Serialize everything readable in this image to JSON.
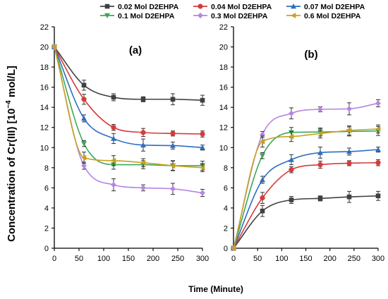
{
  "chart_data": {
    "type": "line",
    "ylabel_main": "Concentration of Cr(III) [10",
    "ylabel_exp": "−4",
    "ylabel_unit": " mol/L]",
    "xlabel": "Time (Minute)",
    "x_ticks": [
      0,
      50,
      100,
      150,
      200,
      250,
      300
    ],
    "y_ticks": [
      0,
      2,
      4,
      6,
      8,
      10,
      12,
      14,
      16,
      18,
      20,
      22
    ],
    "xlim": [
      0,
      300
    ],
    "ylim": [
      0,
      22
    ],
    "legend_position": "top",
    "series_meta": [
      {
        "name": "0.02 Mol D2EHPA",
        "color": "#404040",
        "marker": "square"
      },
      {
        "name": "0.04 Mol D2EHPA",
        "color": "#d93a3a",
        "marker": "circle"
      },
      {
        "name": "0.07 Mol D2EHPA",
        "color": "#2e6ec0",
        "marker": "triangle"
      },
      {
        "name": "0.1 Mol D2EHPA",
        "color": "#3aaa55",
        "marker": "triangle-down"
      },
      {
        "name": "0.3 Mol D2EHPA",
        "color": "#b586e0",
        "marker": "diamond"
      },
      {
        "name": "0.6 Mol  D2EHPA",
        "color": "#c9a020",
        "marker": "triangle-left"
      }
    ],
    "panels": [
      {
        "label": "(a)",
        "x": [
          0,
          60,
          120,
          180,
          240,
          300
        ],
        "series": [
          {
            "values": [
              20,
              16.2,
              15.0,
              14.8,
              14.8,
              14.7
            ],
            "errors": [
              0,
              0.5,
              0.35,
              0.25,
              0.55,
              0.5
            ]
          },
          {
            "values": [
              20,
              14.8,
              12.0,
              11.5,
              11.4,
              11.35
            ],
            "errors": [
              0,
              0.5,
              0.3,
              0.4,
              0.25,
              0.3
            ]
          },
          {
            "values": [
              20,
              12.9,
              10.9,
              10.25,
              10.2,
              10.0
            ],
            "errors": [
              0,
              0.35,
              0.5,
              0.6,
              0.35,
              0.25
            ]
          },
          {
            "values": [
              20,
              10.4,
              8.3,
              8.3,
              8.2,
              8.2
            ],
            "errors": [
              0,
              0.3,
              0.45,
              0.4,
              0.5,
              0.45
            ]
          },
          {
            "values": [
              20,
              8.2,
              6.3,
              6.0,
              5.9,
              5.5
            ],
            "errors": [
              0,
              0.35,
              0.6,
              0.3,
              0.55,
              0.35
            ]
          },
          {
            "values": [
              20,
              9.0,
              8.7,
              8.5,
              8.2,
              8.0
            ],
            "errors": [
              0,
              0.55,
              0.5,
              0.4,
              0.45,
              0.4
            ]
          }
        ]
      },
      {
        "label": "(b)",
        "x": [
          0,
          60,
          120,
          180,
          240,
          300
        ],
        "series": [
          {
            "values": [
              0,
              3.7,
              4.8,
              4.95,
              5.1,
              5.2
            ],
            "errors": [
              0,
              0.55,
              0.35,
              0.25,
              0.55,
              0.45
            ]
          },
          {
            "values": [
              0,
              5.0,
              7.8,
              8.3,
              8.45,
              8.5
            ],
            "errors": [
              0,
              0.55,
              0.3,
              0.35,
              0.25,
              0.3
            ]
          },
          {
            "values": [
              0,
              6.8,
              8.8,
              9.5,
              9.6,
              9.8
            ],
            "errors": [
              0,
              0.35,
              0.5,
              0.55,
              0.35,
              0.25
            ]
          },
          {
            "values": [
              0,
              9.2,
              11.5,
              11.55,
              11.6,
              11.65
            ],
            "errors": [
              0,
              0.3,
              0.5,
              0.4,
              0.45,
              0.45
            ]
          },
          {
            "values": [
              0,
              11.3,
              13.4,
              13.8,
              13.85,
              14.4
            ],
            "errors": [
              0,
              0.3,
              0.55,
              0.25,
              0.6,
              0.35
            ]
          },
          {
            "values": [
              0,
              10.6,
              11.1,
              11.4,
              11.7,
              11.85
            ],
            "errors": [
              0,
              0.55,
              0.5,
              0.45,
              0.45,
              0.4
            ]
          }
        ]
      }
    ]
  }
}
